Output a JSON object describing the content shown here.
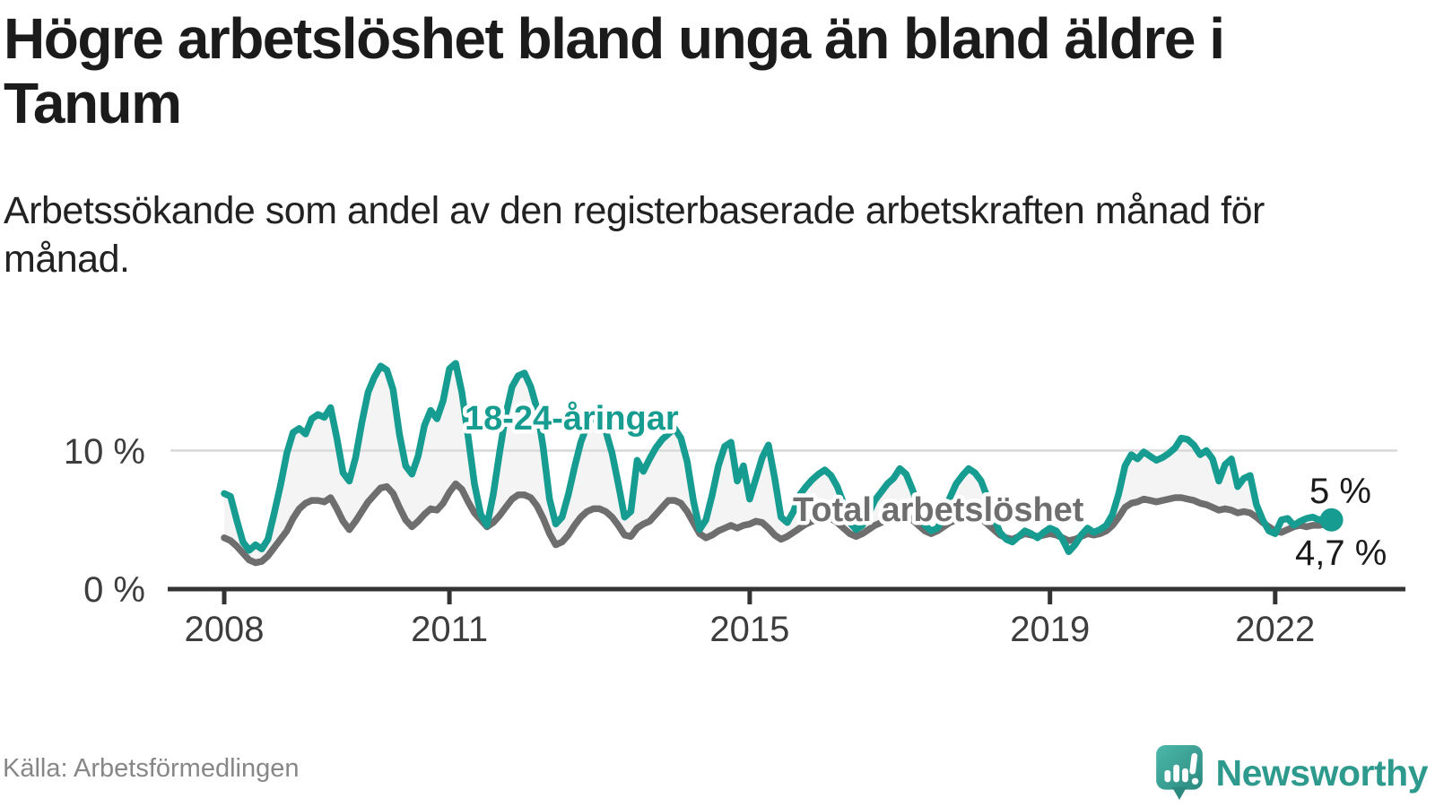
{
  "header": {
    "title": "Högre arbetslöshet bland unga än bland äldre i Tanum",
    "subtitle": "Arbetssökande som andel av den registerbaserade arbetskraften månad för månad."
  },
  "footer": {
    "source": "Källa: Arbetsförmedlingen",
    "brand": "Newsworthy"
  },
  "colors": {
    "youth_line": "#169C90",
    "total_line": "#6E6E6E",
    "between_fill": "#f4f4f4",
    "gridline": "#d9d9d9",
    "axis": "#333333",
    "brand_teal": "#2E9A8E",
    "text_dark": "#1b1b1b"
  },
  "chart_data": {
    "type": "line",
    "title": "Högre arbetslöshet bland unga än bland äldre i Tanum",
    "unit": "%",
    "frequency": "monthly",
    "start": "2008-01",
    "end": "2022-10",
    "grid": "single horizontal line at 10 %",
    "legend_position": "inline labels on lines",
    "ylim": [
      0,
      17.5
    ],
    "y_tick_labels": [
      "10 %",
      "0 %"
    ],
    "y_tick_values": [
      10,
      0
    ],
    "x_ticks": [
      2008,
      2011,
      2015,
      2019,
      2022
    ],
    "x_tick_labels": [
      "2008",
      "2011",
      "2015",
      "2019",
      "2022"
    ],
    "series": [
      {
        "name": "18-24-åringar",
        "color": "#169C90",
        "end_label": "5 %",
        "end_value": 5.0,
        "values": [
          6.9,
          6.7,
          5.0,
          3.4,
          2.8,
          3.2,
          2.9,
          3.6,
          5.5,
          7.5,
          9.8,
          11.3,
          11.6,
          11.2,
          12.3,
          12.6,
          12.4,
          13.1,
          10.9,
          8.4,
          7.8,
          9.5,
          12.0,
          14.2,
          15.3,
          16.1,
          15.8,
          14.4,
          11.2,
          8.9,
          8.3,
          9.6,
          11.8,
          12.9,
          12.3,
          13.6,
          15.9,
          16.3,
          14.2,
          11.0,
          7.6,
          5.4,
          4.6,
          6.8,
          9.8,
          12.6,
          14.6,
          15.4,
          15.6,
          14.6,
          13.0,
          10.2,
          6.5,
          4.7,
          5.2,
          6.8,
          8.8,
          10.6,
          11.8,
          12.4,
          12.2,
          11.4,
          9.8,
          7.6,
          5.2,
          5.6,
          9.3,
          8.5,
          9.4,
          10.2,
          10.8,
          11.2,
          11.6,
          10.9,
          9.2,
          6.4,
          4.3,
          5.0,
          6.8,
          8.9,
          10.3,
          10.6,
          7.8,
          8.9,
          6.5,
          8.0,
          9.5,
          10.4,
          8.0,
          5.2,
          4.8,
          5.6,
          6.8,
          7.4,
          7.9,
          8.3,
          8.6,
          8.2,
          7.4,
          6.2,
          4.8,
          4.3,
          4.6,
          5.4,
          6.4,
          7.0,
          7.6,
          8.0,
          8.7,
          8.3,
          7.2,
          5.8,
          4.6,
          4.2,
          4.4,
          5.2,
          6.6,
          7.6,
          8.2,
          8.7,
          8.4,
          7.8,
          6.6,
          5.2,
          4.1,
          3.6,
          3.4,
          3.8,
          4.2,
          4.0,
          3.7,
          4.1,
          4.4,
          4.2,
          3.6,
          2.7,
          3.2,
          3.9,
          4.4,
          4.1,
          4.3,
          4.6,
          5.4,
          6.9,
          8.9,
          9.7,
          9.4,
          9.9,
          9.6,
          9.3,
          9.5,
          9.8,
          10.2,
          10.9,
          10.8,
          10.4,
          9.7,
          10.0,
          9.4,
          7.8,
          9.0,
          9.4,
          7.4,
          8.0,
          8.2,
          6.1,
          5.0,
          4.2,
          4.0,
          5.0,
          5.1,
          4.6,
          4.9,
          5.1,
          5.2,
          5.0,
          5.1,
          5.0
        ]
      },
      {
        "name": "Total arbetslöshet",
        "color": "#6E6E6E",
        "end_label": "4,7 %",
        "end_value": 4.7,
        "values": [
          3.7,
          3.5,
          3.1,
          2.6,
          2.1,
          1.9,
          2.0,
          2.4,
          3.0,
          3.6,
          4.2,
          5.1,
          5.8,
          6.2,
          6.4,
          6.4,
          6.3,
          6.6,
          5.8,
          4.9,
          4.3,
          4.9,
          5.6,
          6.3,
          6.8,
          7.3,
          7.4,
          6.9,
          5.9,
          5.0,
          4.5,
          4.9,
          5.4,
          5.8,
          5.7,
          6.2,
          7.0,
          7.6,
          7.2,
          6.3,
          5.5,
          5.0,
          4.5,
          4.8,
          5.3,
          5.9,
          6.5,
          6.8,
          6.8,
          6.6,
          6.0,
          5.1,
          4.0,
          3.2,
          3.4,
          3.9,
          4.6,
          5.2,
          5.6,
          5.8,
          5.8,
          5.6,
          5.2,
          4.6,
          3.9,
          3.8,
          4.4,
          4.7,
          4.9,
          5.4,
          5.9,
          6.4,
          6.4,
          6.2,
          5.6,
          4.8,
          4.0,
          3.7,
          3.9,
          4.2,
          4.4,
          4.6,
          4.4,
          4.6,
          4.7,
          4.9,
          4.8,
          4.4,
          3.9,
          3.6,
          3.8,
          4.1,
          4.4,
          4.7,
          4.9,
          5.1,
          5.2,
          5.1,
          4.8,
          4.4,
          4.0,
          3.8,
          4.0,
          4.3,
          4.6,
          4.8,
          5.0,
          5.2,
          5.4,
          5.3,
          5.0,
          4.6,
          4.2,
          4.0,
          4.2,
          4.5,
          4.8,
          5.0,
          5.2,
          5.4,
          5.3,
          5.1,
          4.7,
          4.3,
          3.9,
          3.7,
          3.6,
          3.8,
          4.0,
          3.9,
          3.8,
          3.9,
          4.0,
          3.9,
          3.7,
          3.5,
          3.6,
          3.8,
          4.0,
          3.9,
          4.0,
          4.2,
          4.6,
          5.2,
          5.9,
          6.2,
          6.3,
          6.5,
          6.4,
          6.3,
          6.4,
          6.5,
          6.6,
          6.6,
          6.5,
          6.4,
          6.2,
          6.1,
          5.9,
          5.7,
          5.8,
          5.7,
          5.5,
          5.6,
          5.5,
          5.2,
          4.8,
          4.5,
          4.2,
          4.1,
          4.3,
          4.5,
          4.6,
          4.5,
          4.6,
          4.6,
          4.7,
          4.7
        ]
      }
    ]
  }
}
